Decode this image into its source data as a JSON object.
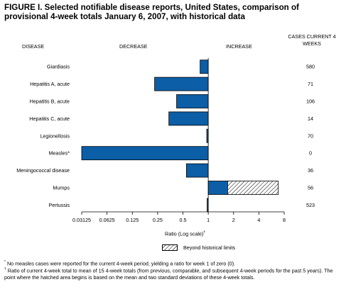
{
  "title": "FIGURE I. Selected notifiable disease reports, United States, comparison of provisional 4-week totals January 6, 2007, with historical data",
  "headers": {
    "disease": "DISEASE",
    "decrease": "DECREASE",
    "increase": "INCREASE",
    "cases": "CASES CURRENT 4 WEEKS"
  },
  "axis_label": "Ratio (Log scale)",
  "axis_label_marker": "†",
  "legend_label": "Beyond historical limits",
  "footnotes": {
    "measles_mark": "*",
    "measles": "No measles cases were reported for the current 4-week period, yielding a ratio for week 1 of zero (0).",
    "ratio_mark": "†",
    "ratio": "Ratio of current 4-week total to mean of 15 4-week totals (from previous, comparable, and subsequent 4-week periods for the past 5 years). The point where the hatched area begins is based on the mean and two standard deviations of these 4-week totals."
  },
  "colors": {
    "bar": "#0c5ea7",
    "bar_edge": "#000000",
    "hatch_bg": "#ffffff"
  },
  "chart_data": {
    "type": "bar",
    "orientation": "horizontal",
    "scale": "log2",
    "xlim": [
      0.03125,
      8
    ],
    "baseline": 1,
    "xticks": [
      0.03125,
      0.0625,
      0.125,
      0.25,
      0.5,
      1,
      2,
      4,
      8
    ],
    "xtick_labels": [
      "0.03125",
      "0.0625",
      "0.125",
      "0.25",
      "0.5",
      "1",
      "2",
      "4",
      "8"
    ],
    "xlabel": "Ratio (Log scale)",
    "categories": [
      "Giardiasis",
      "Hepatitis A, acute",
      "Hepatitis B, acute",
      "Hepatitis C, acute",
      "Legionellosis",
      "Measles*",
      "Meningococcal disease",
      "Mumps",
      "Pertussis"
    ],
    "ratios": [
      0.8,
      0.23,
      0.42,
      0.34,
      0.96,
      0.03125,
      0.55,
      1.7,
      0.97
    ],
    "beyond_limits_end": [
      null,
      null,
      null,
      null,
      null,
      null,
      null,
      6.8,
      null
    ],
    "cases_current_4_weeks": [
      "580",
      "71",
      "106",
      "14",
      "70",
      "0",
      "36",
      "56",
      "523"
    ],
    "grid": false,
    "legend": "bottom-center"
  }
}
